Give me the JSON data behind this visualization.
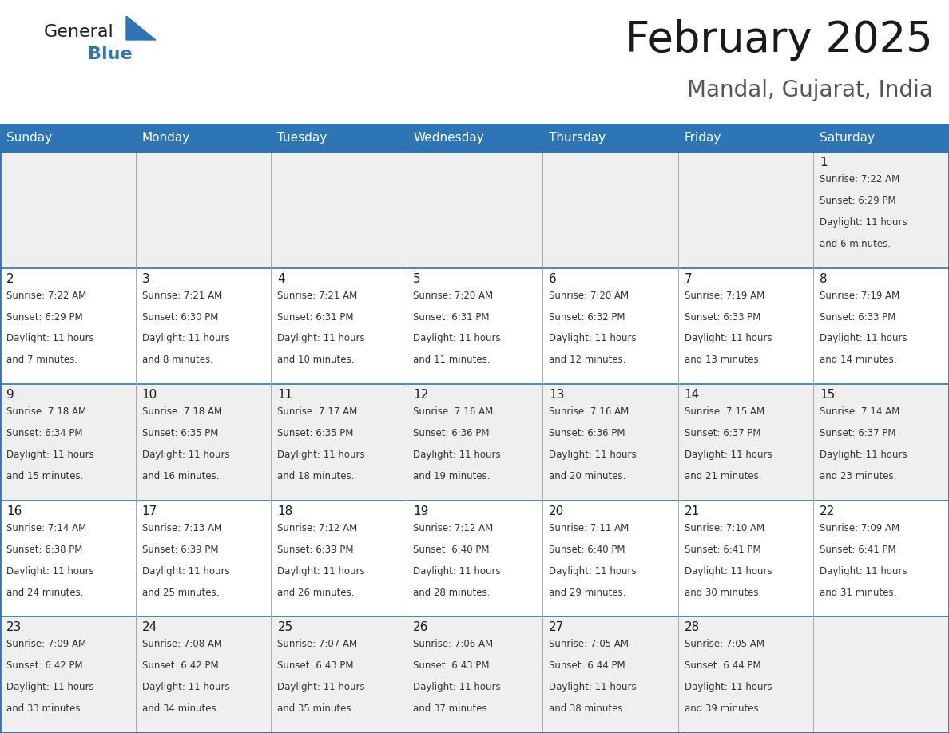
{
  "title": "February 2025",
  "subtitle": "Mandal, Gujarat, India",
  "header_bg": "#2E75B6",
  "header_text_color": "#FFFFFF",
  "cell_bg_light": "#EFEFEF",
  "cell_bg_white": "#FFFFFF",
  "border_color": "#2E75B6",
  "row_line_color": "#2E75B6",
  "col_line_color": "#AAAAAA",
  "text_color": "#333333",
  "day_number_color": "#1a1a1a",
  "day_headers": [
    "Sunday",
    "Monday",
    "Tuesday",
    "Wednesday",
    "Thursday",
    "Friday",
    "Saturday"
  ],
  "num_cols": 7,
  "num_rows": 5,
  "days": [
    {
      "day": 1,
      "col": 6,
      "row": 0,
      "sunrise": "7:22 AM",
      "sunset": "6:29 PM",
      "daylight_hours": 11,
      "daylight_minutes": 6
    },
    {
      "day": 2,
      "col": 0,
      "row": 1,
      "sunrise": "7:22 AM",
      "sunset": "6:29 PM",
      "daylight_hours": 11,
      "daylight_minutes": 7
    },
    {
      "day": 3,
      "col": 1,
      "row": 1,
      "sunrise": "7:21 AM",
      "sunset": "6:30 PM",
      "daylight_hours": 11,
      "daylight_minutes": 8
    },
    {
      "day": 4,
      "col": 2,
      "row": 1,
      "sunrise": "7:21 AM",
      "sunset": "6:31 PM",
      "daylight_hours": 11,
      "daylight_minutes": 10
    },
    {
      "day": 5,
      "col": 3,
      "row": 1,
      "sunrise": "7:20 AM",
      "sunset": "6:31 PM",
      "daylight_hours": 11,
      "daylight_minutes": 11
    },
    {
      "day": 6,
      "col": 4,
      "row": 1,
      "sunrise": "7:20 AM",
      "sunset": "6:32 PM",
      "daylight_hours": 11,
      "daylight_minutes": 12
    },
    {
      "day": 7,
      "col": 5,
      "row": 1,
      "sunrise": "7:19 AM",
      "sunset": "6:33 PM",
      "daylight_hours": 11,
      "daylight_minutes": 13
    },
    {
      "day": 8,
      "col": 6,
      "row": 1,
      "sunrise": "7:19 AM",
      "sunset": "6:33 PM",
      "daylight_hours": 11,
      "daylight_minutes": 14
    },
    {
      "day": 9,
      "col": 0,
      "row": 2,
      "sunrise": "7:18 AM",
      "sunset": "6:34 PM",
      "daylight_hours": 11,
      "daylight_minutes": 15
    },
    {
      "day": 10,
      "col": 1,
      "row": 2,
      "sunrise": "7:18 AM",
      "sunset": "6:35 PM",
      "daylight_hours": 11,
      "daylight_minutes": 16
    },
    {
      "day": 11,
      "col": 2,
      "row": 2,
      "sunrise": "7:17 AM",
      "sunset": "6:35 PM",
      "daylight_hours": 11,
      "daylight_minutes": 18
    },
    {
      "day": 12,
      "col": 3,
      "row": 2,
      "sunrise": "7:16 AM",
      "sunset": "6:36 PM",
      "daylight_hours": 11,
      "daylight_minutes": 19
    },
    {
      "day": 13,
      "col": 4,
      "row": 2,
      "sunrise": "7:16 AM",
      "sunset": "6:36 PM",
      "daylight_hours": 11,
      "daylight_minutes": 20
    },
    {
      "day": 14,
      "col": 5,
      "row": 2,
      "sunrise": "7:15 AM",
      "sunset": "6:37 PM",
      "daylight_hours": 11,
      "daylight_minutes": 21
    },
    {
      "day": 15,
      "col": 6,
      "row": 2,
      "sunrise": "7:14 AM",
      "sunset": "6:37 PM",
      "daylight_hours": 11,
      "daylight_minutes": 23
    },
    {
      "day": 16,
      "col": 0,
      "row": 3,
      "sunrise": "7:14 AM",
      "sunset": "6:38 PM",
      "daylight_hours": 11,
      "daylight_minutes": 24
    },
    {
      "day": 17,
      "col": 1,
      "row": 3,
      "sunrise": "7:13 AM",
      "sunset": "6:39 PM",
      "daylight_hours": 11,
      "daylight_minutes": 25
    },
    {
      "day": 18,
      "col": 2,
      "row": 3,
      "sunrise": "7:12 AM",
      "sunset": "6:39 PM",
      "daylight_hours": 11,
      "daylight_minutes": 26
    },
    {
      "day": 19,
      "col": 3,
      "row": 3,
      "sunrise": "7:12 AM",
      "sunset": "6:40 PM",
      "daylight_hours": 11,
      "daylight_minutes": 28
    },
    {
      "day": 20,
      "col": 4,
      "row": 3,
      "sunrise": "7:11 AM",
      "sunset": "6:40 PM",
      "daylight_hours": 11,
      "daylight_minutes": 29
    },
    {
      "day": 21,
      "col": 5,
      "row": 3,
      "sunrise": "7:10 AM",
      "sunset": "6:41 PM",
      "daylight_hours": 11,
      "daylight_minutes": 30
    },
    {
      "day": 22,
      "col": 6,
      "row": 3,
      "sunrise": "7:09 AM",
      "sunset": "6:41 PM",
      "daylight_hours": 11,
      "daylight_minutes": 31
    },
    {
      "day": 23,
      "col": 0,
      "row": 4,
      "sunrise": "7:09 AM",
      "sunset": "6:42 PM",
      "daylight_hours": 11,
      "daylight_minutes": 33
    },
    {
      "day": 24,
      "col": 1,
      "row": 4,
      "sunrise": "7:08 AM",
      "sunset": "6:42 PM",
      "daylight_hours": 11,
      "daylight_minutes": 34
    },
    {
      "day": 25,
      "col": 2,
      "row": 4,
      "sunrise": "7:07 AM",
      "sunset": "6:43 PM",
      "daylight_hours": 11,
      "daylight_minutes": 35
    },
    {
      "day": 26,
      "col": 3,
      "row": 4,
      "sunrise": "7:06 AM",
      "sunset": "6:43 PM",
      "daylight_hours": 11,
      "daylight_minutes": 37
    },
    {
      "day": 27,
      "col": 4,
      "row": 4,
      "sunrise": "7:05 AM",
      "sunset": "6:44 PM",
      "daylight_hours": 11,
      "daylight_minutes": 38
    },
    {
      "day": 28,
      "col": 5,
      "row": 4,
      "sunrise": "7:05 AM",
      "sunset": "6:44 PM",
      "daylight_hours": 11,
      "daylight_minutes": 39
    }
  ],
  "logo_color_general": "#1a1a1a",
  "logo_color_blue": "#2E75B6",
  "logo_triangle_color": "#2E75B6",
  "title_fontsize": 38,
  "subtitle_fontsize": 20,
  "header_fontsize": 11,
  "day_number_fontsize": 11,
  "cell_text_fontsize": 8.5
}
